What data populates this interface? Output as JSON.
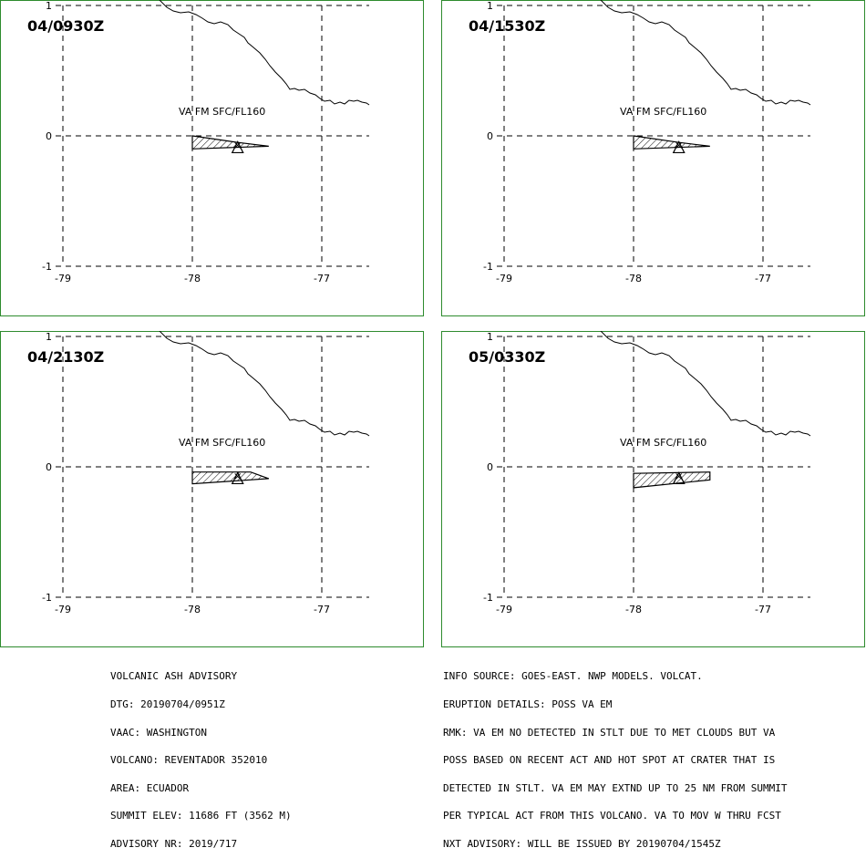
{
  "colors": {
    "frame": "#2e8b2e",
    "line": "#000000",
    "background": "#ffffff"
  },
  "map": {
    "x_ticks": [
      "-79",
      "-78",
      "-77"
    ],
    "y_ticks": [
      "1",
      "0",
      "-1"
    ]
  },
  "panels": [
    {
      "time": "04/0930Z",
      "label": "VA FM SFC/FL160",
      "ash_area": [
        [
          -78.0,
          0.0
        ],
        [
          -78.0,
          -0.1
        ],
        [
          -77.41,
          -0.08
        ],
        [
          -77.65,
          -0.05
        ]
      ]
    },
    {
      "time": "04/1530Z",
      "label": "VA FM SFC/FL160",
      "ash_area": [
        [
          -78.0,
          0.0
        ],
        [
          -78.0,
          -0.1
        ],
        [
          -77.41,
          -0.08
        ],
        [
          -77.65,
          -0.05
        ]
      ]
    },
    {
      "time": "04/2130Z",
      "label": "VA FM SFC/FL160",
      "ash_area": [
        [
          -78.0,
          -0.04
        ],
        [
          -78.0,
          -0.13
        ],
        [
          -77.41,
          -0.09
        ],
        [
          -77.55,
          -0.04
        ]
      ]
    },
    {
      "time": "05/0330Z",
      "label": "VA FM SFC/FL160",
      "ash_area": [
        [
          -78.0,
          -0.05
        ],
        [
          -78.0,
          -0.16
        ],
        [
          -77.41,
          -0.1
        ],
        [
          -77.41,
          -0.04
        ]
      ]
    }
  ],
  "volcano": {
    "lon": -77.65,
    "lat": -0.08
  },
  "advisory_left": [
    "VOLCANIC ASH ADVISORY",
    "DTG: 20190704/0951Z",
    "VAAC: WASHINGTON",
    "VOLCANO: REVENTADOR 352010",
    "AREA: ECUADOR",
    "SUMMIT ELEV: 11686 FT (3562 M)",
    "ADVISORY NR: 2019/717"
  ],
  "advisory_right": [
    "INFO SOURCE: GOES-EAST. NWP MODELS. VOLCAT.",
    "ERUPTION DETAILS: POSS VA EM",
    "RMK: VA EM NO DETECTED IN STLT DUE TO MET CLOUDS BUT VA",
    "POSS BASED ON RECENT ACT AND HOT SPOT AT CRATER THAT IS",
    "DETECTED IN STLT. VA EM MAY EXTND UP TO 25 NM FROM SUMMIT",
    "PER TYPICAL ACT FROM THIS VOLCANO. VA TO MOV W THRU FCST",
    "NXT ADVISORY: WILL BE ISSUED BY 20190704/1545Z"
  ]
}
